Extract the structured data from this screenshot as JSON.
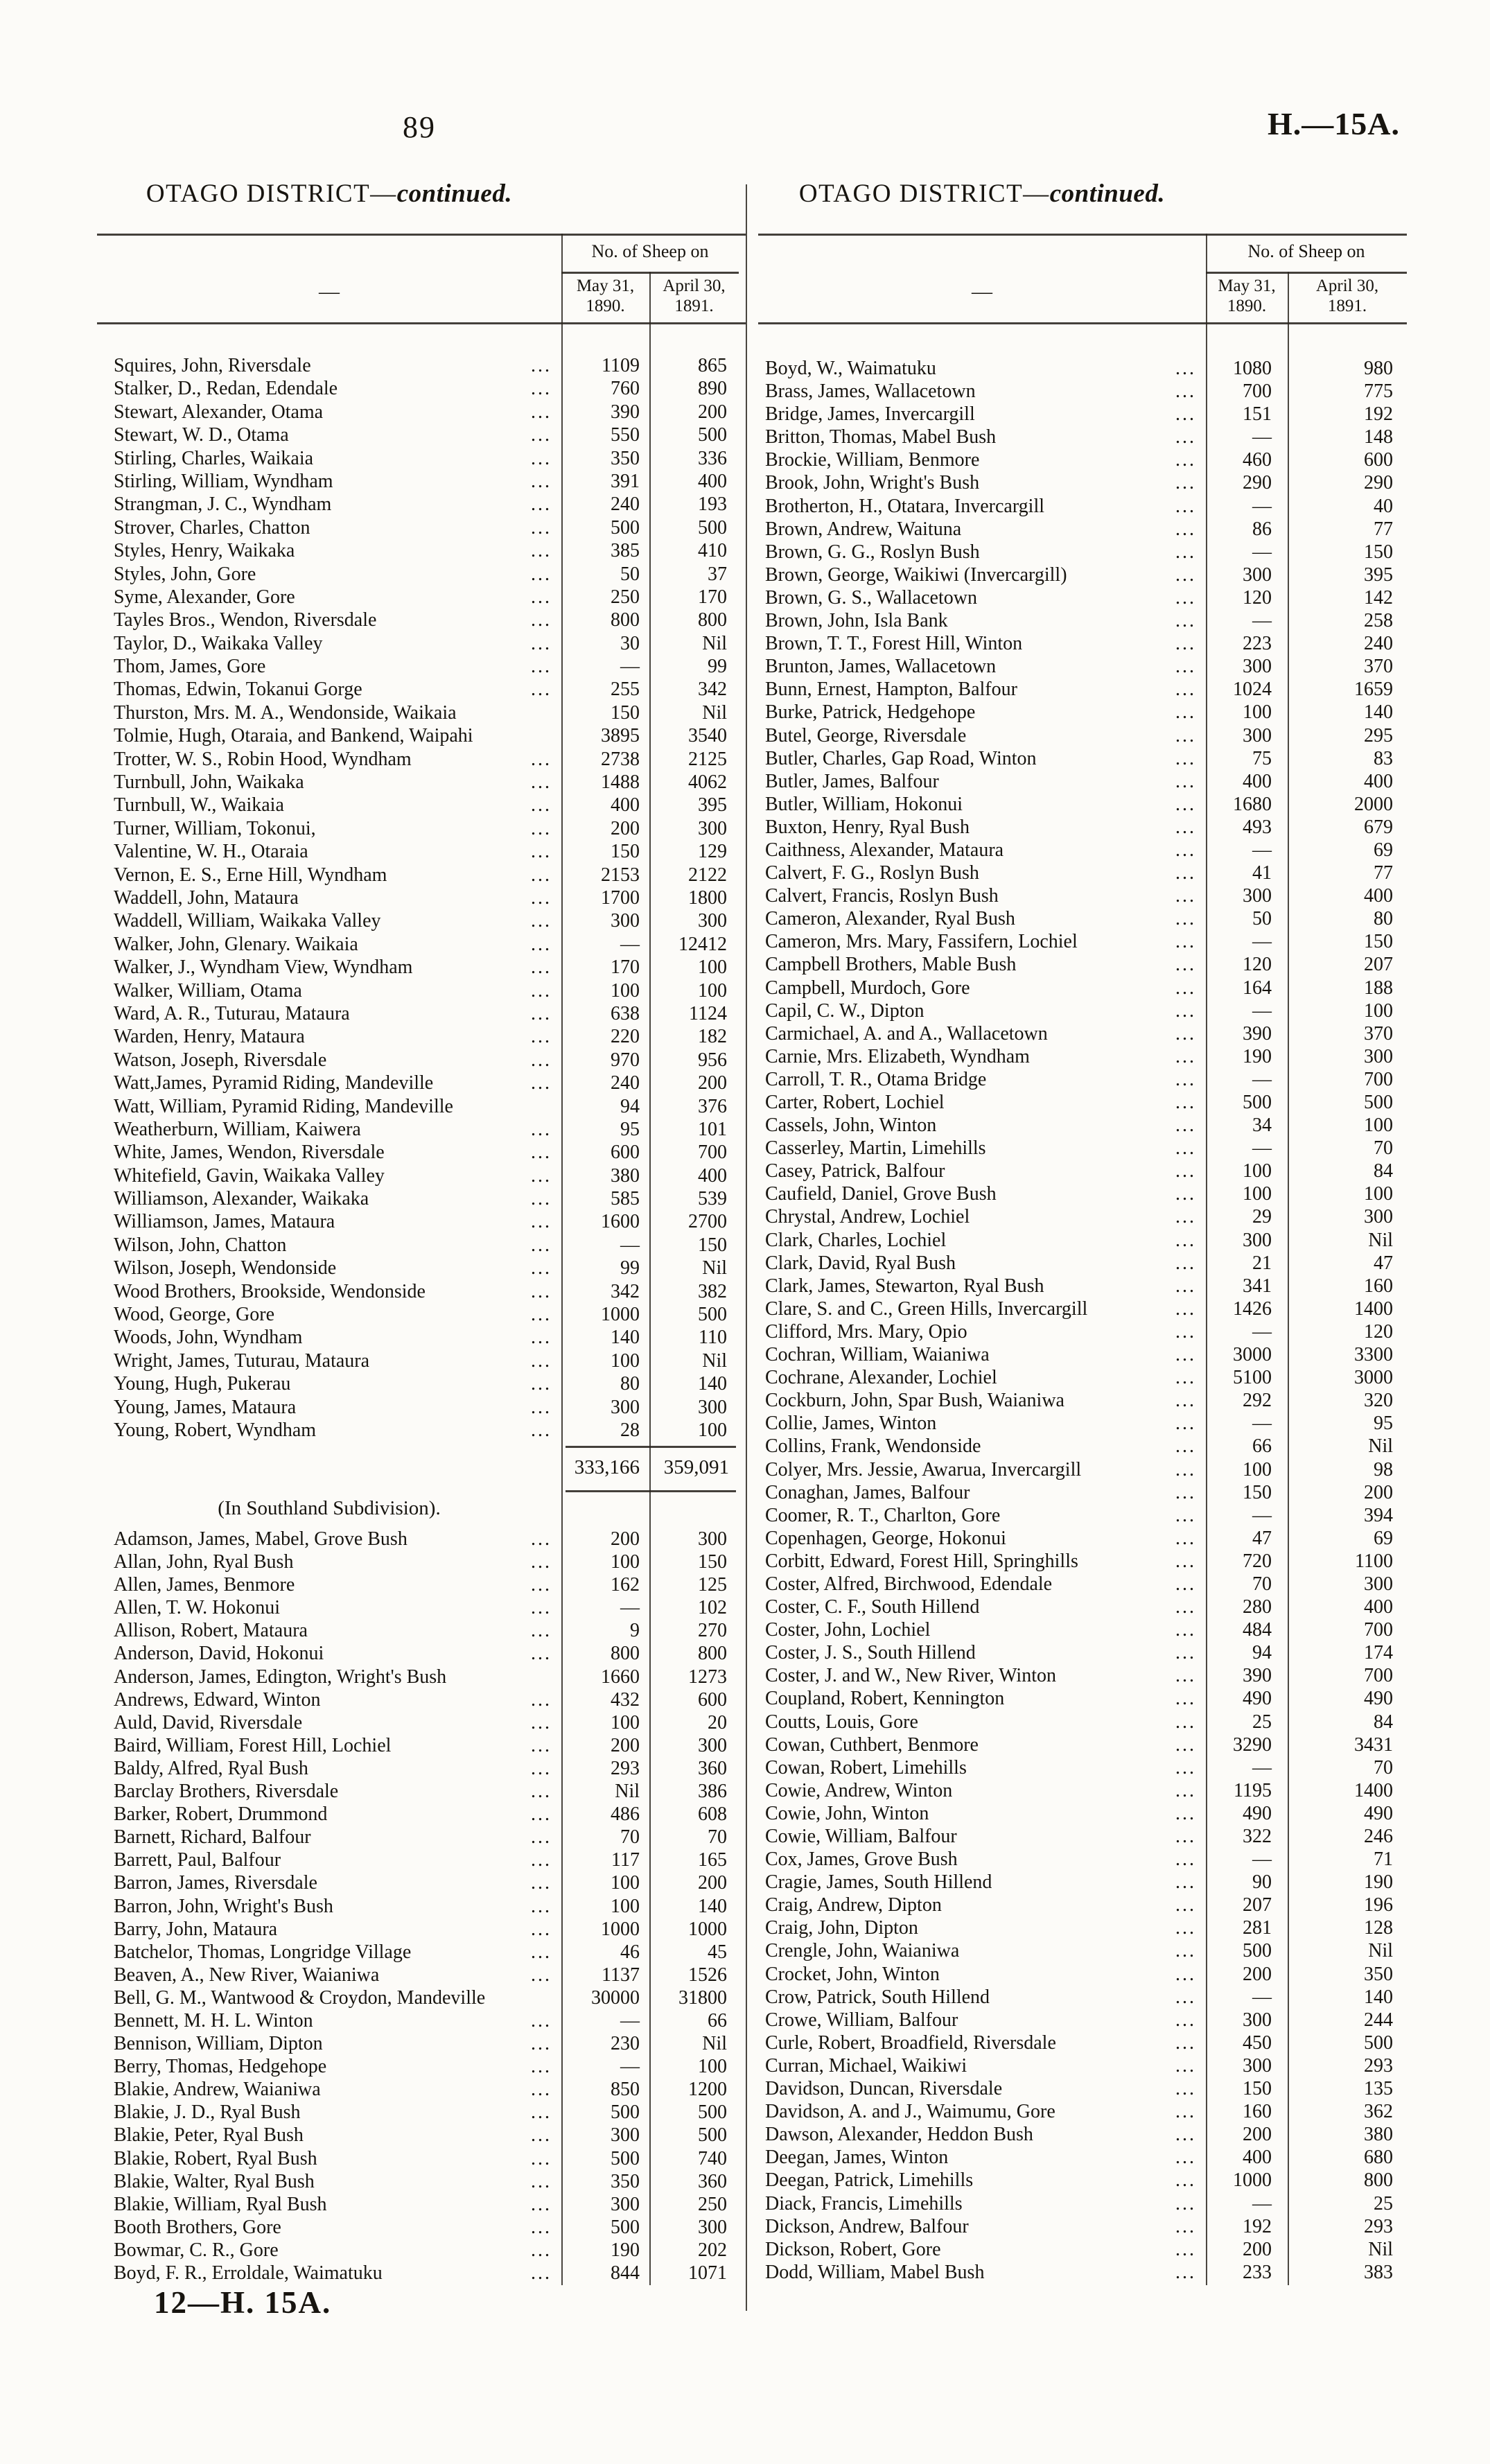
{
  "page": {
    "page_number": "89",
    "doc_ref": "H.—15A.",
    "footer": "12—H. 15A."
  },
  "table_header": {
    "name_placeholder": "—",
    "group": "No. of Sheep on",
    "col1_line1": "May 31,",
    "col1_line2": "1890.",
    "col2_line1": "April 30,",
    "col2_line2": "1891."
  },
  "columns": [
    {
      "title": "OTAGO DISTRICT—",
      "title_cont": "continued.",
      "rows": [
        [
          "Squires, John, Riversdale",
          "1109",
          "865"
        ],
        [
          "Stalker, D., Redan, Edendale",
          "760",
          "890"
        ],
        [
          "Stewart, Alexander, Otama",
          "390",
          "200"
        ],
        [
          "Stewart, W. D., Otama",
          "550",
          "500"
        ],
        [
          "Stirling, Charles, Waikaia",
          "350",
          "336"
        ],
        [
          "Stirling, William, Wyndham",
          "391",
          "400"
        ],
        [
          "Strangman, J. C., Wyndham",
          "240",
          "193"
        ],
        [
          "Strover, Charles, Chatton",
          "500",
          "500"
        ],
        [
          "Styles, Henry, Waikaka",
          "385",
          "410"
        ],
        [
          "Styles, John, Gore",
          "50",
          "37"
        ],
        [
          "Syme, Alexander, Gore",
          "250",
          "170"
        ],
        [
          "Tayles Bros., Wendon, Riversdale",
          "800",
          "800"
        ],
        [
          "Taylor, D., Waikaka Valley",
          "30",
          "Nil"
        ],
        [
          "Thom, James, Gore",
          "—",
          "99"
        ],
        [
          "Thomas, Edwin, Tokanui Gorge",
          "255",
          "342"
        ],
        [
          "Thurston, Mrs. M. A., Wendonside, Waikaia",
          "150",
          "Nil",
          0
        ],
        [
          "Tolmie, Hugh, Otaraia, and Bankend, Waipahi",
          "3895",
          "3540",
          0
        ],
        [
          "Trotter, W. S., Robin Hood, Wyndham",
          "2738",
          "2125"
        ],
        [
          "Turnbull, John, Waikaka",
          "1488",
          "4062"
        ],
        [
          "Turnbull, W., Waikaia",
          "400",
          "395"
        ],
        [
          "Turner, William, Tokonui,",
          "200",
          "300"
        ],
        [
          "Valentine, W. H., Otaraia",
          "150",
          "129"
        ],
        [
          "Vernon, E. S., Erne Hill, Wyndham",
          "2153",
          "2122"
        ],
        [
          "Waddell, John, Mataura",
          "1700",
          "1800"
        ],
        [
          "Waddell, William, Waikaka Valley",
          "300",
          "300"
        ],
        [
          "Walker, John, Glenary. Waikaia",
          "—",
          "12412"
        ],
        [
          "Walker, J., Wyndham View, Wyndham",
          "170",
          "100"
        ],
        [
          "Walker, William, Otama",
          "100",
          "100"
        ],
        [
          "Ward, A. R., Tuturau, Mataura",
          "638",
          "1124"
        ],
        [
          "Warden, Henry, Mataura",
          "220",
          "182"
        ],
        [
          "Watson, Joseph, Riversdale",
          "970",
          "956"
        ],
        [
          "Watt,James, Pyramid Riding, Mandeville",
          "240",
          "200"
        ],
        [
          "Watt, William, Pyramid Riding, Mandeville",
          "94",
          "376",
          0
        ],
        [
          "Weatherburn, William, Kaiwera",
          "95",
          "101"
        ],
        [
          "White, James, Wendon, Riversdale",
          "600",
          "700"
        ],
        [
          "Whitefield, Gavin, Waikaka Valley",
          "380",
          "400"
        ],
        [
          "Williamson, Alexander, Waikaka",
          "585",
          "539"
        ],
        [
          "Williamson, James, Mataura",
          "1600",
          "2700"
        ],
        [
          "Wilson, John, Chatton",
          "—",
          "150"
        ],
        [
          "Wilson, Joseph, Wendonside",
          "99",
          "Nil"
        ],
        [
          "Wood Brothers, Brookside, Wendonside",
          "342",
          "382"
        ],
        [
          "Wood, George, Gore",
          "1000",
          "500"
        ],
        [
          "Woods, John, Wyndham",
          "140",
          "110"
        ],
        [
          "Wright, James, Tuturau, Mataura",
          "100",
          "Nil"
        ],
        [
          "Young, Hugh, Pukerau",
          "80",
          "140"
        ],
        [
          "Young, James, Mataura",
          "300",
          "300"
        ],
        [
          "Young, Robert, Wyndham",
          "28",
          "100"
        ]
      ],
      "total_1890": "333,166",
      "total_1891": "359,091",
      "subheading": "(In Southland Subdivision).",
      "rows2": [
        [
          "Adamson, James, Mabel, Grove Bush",
          "200",
          "300"
        ],
        [
          "Allan, John, Ryal Bush",
          "100",
          "150"
        ],
        [
          "Allen, James, Benmore",
          "162",
          "125"
        ],
        [
          "Allen, T. W. Hokonui",
          "—",
          "102"
        ],
        [
          "Allison, Robert, Mataura",
          "9",
          "270"
        ],
        [
          "Anderson, David, Hokonui",
          "800",
          "800"
        ],
        [
          "Anderson, James, Edington, Wright's Bush",
          "1660",
          "1273",
          0
        ],
        [
          "Andrews, Edward, Winton",
          "432",
          "600"
        ],
        [
          "Auld, David, Riversdale",
          "100",
          "20"
        ],
        [
          "Baird, William, Forest Hill, Lochiel",
          "200",
          "300"
        ],
        [
          "Baldy, Alfred, Ryal Bush",
          "293",
          "360"
        ],
        [
          "Barclay Brothers, Riversdale",
          "Nil",
          "386"
        ],
        [
          "Barker, Robert, Drummond",
          "486",
          "608"
        ],
        [
          "Barnett, Richard, Balfour",
          "70",
          "70"
        ],
        [
          "Barrett, Paul, Balfour",
          "117",
          "165"
        ],
        [
          "Barron, James, Riversdale",
          "100",
          "200"
        ],
        [
          "Barron, John, Wright's Bush",
          "100",
          "140"
        ],
        [
          "Barry, John, Mataura",
          "1000",
          "1000"
        ],
        [
          "Batchelor, Thomas, Longridge Village",
          "46",
          "45"
        ],
        [
          "Beaven, A., New River, Waianiwa",
          "1137",
          "1526"
        ],
        [
          "Bell, G. M., Wantwood & Croydon, Mandeville",
          "30000",
          "31800",
          0
        ],
        [
          "Bennett, M. H. L. Winton",
          "—",
          "66"
        ],
        [
          "Bennison, William, Dipton",
          "230",
          "Nil"
        ],
        [
          "Berry, Thomas, Hedgehope",
          "—",
          "100"
        ],
        [
          "Blakie, Andrew, Waianiwa",
          "850",
          "1200"
        ],
        [
          "Blakie, J. D., Ryal Bush",
          "500",
          "500"
        ],
        [
          "Blakie, Peter, Ryal Bush",
          "300",
          "500"
        ],
        [
          "Blakie, Robert, Ryal Bush",
          "500",
          "740"
        ],
        [
          "Blakie, Walter, Ryal Bush",
          "350",
          "360"
        ],
        [
          "Blakie, William, Ryal Bush",
          "300",
          "250"
        ],
        [
          "Booth Brothers, Gore",
          "500",
          "300"
        ],
        [
          "Bowmar, C. R., Gore",
          "190",
          "202"
        ],
        [
          "Boyd, F. R., Erroldale, Waimatuku",
          "844",
          "1071"
        ]
      ]
    },
    {
      "title": "OTAGO DISTRICT—",
      "title_cont": "continued.",
      "rows": [
        [
          "Boyd, W., Waimatuku",
          "1080",
          "980"
        ],
        [
          "Brass, James, Wallacetown",
          "700",
          "775"
        ],
        [
          "Bridge, James, Invercargill",
          "151",
          "192"
        ],
        [
          "Britton, Thomas, Mabel Bush",
          "—",
          "148"
        ],
        [
          "Brockie, William, Benmore",
          "460",
          "600"
        ],
        [
          "Brook, John, Wright's Bush",
          "290",
          "290"
        ],
        [
          "Brotherton, H., Otatara, Invercargill",
          "—",
          "40"
        ],
        [
          "Brown, Andrew, Waituna",
          "86",
          "77"
        ],
        [
          "Brown, G. G., Roslyn Bush",
          "—",
          "150"
        ],
        [
          "Brown, George, Waikiwi (Invercargill)",
          "300",
          "395"
        ],
        [
          "Brown, G. S., Wallacetown",
          "120",
          "142"
        ],
        [
          "Brown, John, Isla Bank",
          "—",
          "258"
        ],
        [
          "Brown, T. T., Forest Hill, Winton",
          "223",
          "240"
        ],
        [
          "Brunton, James, Wallacetown",
          "300",
          "370"
        ],
        [
          "Bunn, Ernest, Hampton, Balfour",
          "1024",
          "1659"
        ],
        [
          "Burke, Patrick, Hedgehope",
          "100",
          "140"
        ],
        [
          "Butel, George, Riversdale",
          "300",
          "295"
        ],
        [
          "Butler, Charles, Gap Road, Winton",
          "75",
          "83"
        ],
        [
          "Butler, James, Balfour",
          "400",
          "400"
        ],
        [
          "Butler, William, Hokonui",
          "1680",
          "2000"
        ],
        [
          "Buxton, Henry, Ryal Bush",
          "493",
          "679"
        ],
        [
          "Caithness, Alexander, Mataura",
          "—",
          "69"
        ],
        [
          "Calvert, F. G., Roslyn Bush",
          "41",
          "77"
        ],
        [
          "Calvert, Francis, Roslyn Bush",
          "300",
          "400"
        ],
        [
          "Cameron, Alexander, Ryal Bush",
          "50",
          "80"
        ],
        [
          "Cameron, Mrs. Mary, Fassifern, Lochiel",
          "—",
          "150"
        ],
        [
          "Campbell Brothers, Mable Bush",
          "120",
          "207"
        ],
        [
          "Campbell, Murdoch, Gore",
          "164",
          "188"
        ],
        [
          "Capil, C. W., Dipton",
          "—",
          "100"
        ],
        [
          "Carmichael, A. and A., Wallacetown",
          "390",
          "370"
        ],
        [
          "Carnie, Mrs. Elizabeth, Wyndham",
          "190",
          "300"
        ],
        [
          "Carroll, T. R., Otama Bridge",
          "—",
          "700"
        ],
        [
          "Carter, Robert, Lochiel",
          "500",
          "500"
        ],
        [
          "Cassels, John, Winton",
          "34",
          "100"
        ],
        [
          "Casserley, Martin, Limehills",
          "—",
          "70"
        ],
        [
          "Casey, Patrick, Balfour",
          "100",
          "84"
        ],
        [
          "Caufield, Daniel, Grove Bush",
          "100",
          "100"
        ],
        [
          "Chrystal, Andrew, Lochiel",
          "29",
          "300"
        ],
        [
          "Clark, Charles, Lochiel",
          "300",
          "Nil"
        ],
        [
          "Clark, David, Ryal Bush",
          "21",
          "47"
        ],
        [
          "Clark, James, Stewarton, Ryal Bush",
          "341",
          "160"
        ],
        [
          "Clare, S. and C., Green Hills, Invercargill",
          "1426",
          "1400"
        ],
        [
          "Clifford, Mrs. Mary, Opio",
          "—",
          "120"
        ],
        [
          "Cochran, William, Waianiwa",
          "3000",
          "3300"
        ],
        [
          "Cochrane, Alexander, Lochiel",
          "5100",
          "3000"
        ],
        [
          "Cockburn, John, Spar Bush, Waianiwa",
          "292",
          "320"
        ],
        [
          "Collie, James, Winton",
          "—",
          "95"
        ],
        [
          "Collins, Frank, Wendonside",
          "66",
          "Nil"
        ],
        [
          "Colyer, Mrs. Jessie, Awarua, Invercargill",
          "100",
          "98"
        ],
        [
          "Conaghan, James, Balfour",
          "150",
          "200"
        ],
        [
          "Coomer, R. T., Charlton, Gore",
          "—",
          "394"
        ],
        [
          "Copenhagen, George, Hokonui",
          "47",
          "69"
        ],
        [
          "Corbitt, Edward, Forest Hill, Springhills",
          "720",
          "1100"
        ],
        [
          "Coster, Alfred, Birchwood, Edendale",
          "70",
          "300"
        ],
        [
          "Coster, C. F., South Hillend",
          "280",
          "400"
        ],
        [
          "Coster, John, Lochiel",
          "484",
          "700"
        ],
        [
          "Coster, J. S., South Hillend",
          "94",
          "174"
        ],
        [
          "Coster, J. and W., New River, Winton",
          "390",
          "700"
        ],
        [
          "Coupland, Robert, Kennington",
          "490",
          "490"
        ],
        [
          "Coutts, Louis, Gore",
          "25",
          "84"
        ],
        [
          "Cowan, Cuthbert, Benmore",
          "3290",
          "3431"
        ],
        [
          "Cowan, Robert, Limehills",
          "—",
          "70"
        ],
        [
          "Cowie, Andrew, Winton",
          "1195",
          "1400"
        ],
        [
          "Cowie, John, Winton",
          "490",
          "490"
        ],
        [
          "Cowie, William, Balfour",
          "322",
          "246"
        ],
        [
          "Cox, James, Grove Bush",
          "—",
          "71"
        ],
        [
          "Cragie, James, South Hillend",
          "90",
          "190"
        ],
        [
          "Craig, Andrew, Dipton",
          "207",
          "196"
        ],
        [
          "Craig, John, Dipton",
          "281",
          "128"
        ],
        [
          "Crengle, John, Waianiwa",
          "500",
          "Nil"
        ],
        [
          "Crocket, John, Winton",
          "200",
          "350"
        ],
        [
          "Crow, Patrick, South Hillend",
          "—",
          "140"
        ],
        [
          "Crowe, William, Balfour",
          "300",
          "244"
        ],
        [
          "Curle, Robert, Broadfield, Riversdale",
          "450",
          "500"
        ],
        [
          "Curran, Michael, Waikiwi",
          "300",
          "293"
        ],
        [
          "Davidson, Duncan, Riversdale",
          "150",
          "135"
        ],
        [
          "Davidson, A. and J., Waimumu, Gore",
          "160",
          "362"
        ],
        [
          "Dawson, Alexander, Heddon Bush",
          "200",
          "380"
        ],
        [
          "Deegan, James, Winton",
          "400",
          "680"
        ],
        [
          "Deegan, Patrick, Limehills",
          "1000",
          "800"
        ],
        [
          "Diack, Francis, Limehills",
          "—",
          "25"
        ],
        [
          "Dickson, Andrew, Balfour",
          "192",
          "293"
        ],
        [
          "Dickson, Robert, Gore",
          "200",
          "Nil"
        ],
        [
          "Dodd, William, Mabel Bush",
          "233",
          "383"
        ]
      ]
    }
  ]
}
